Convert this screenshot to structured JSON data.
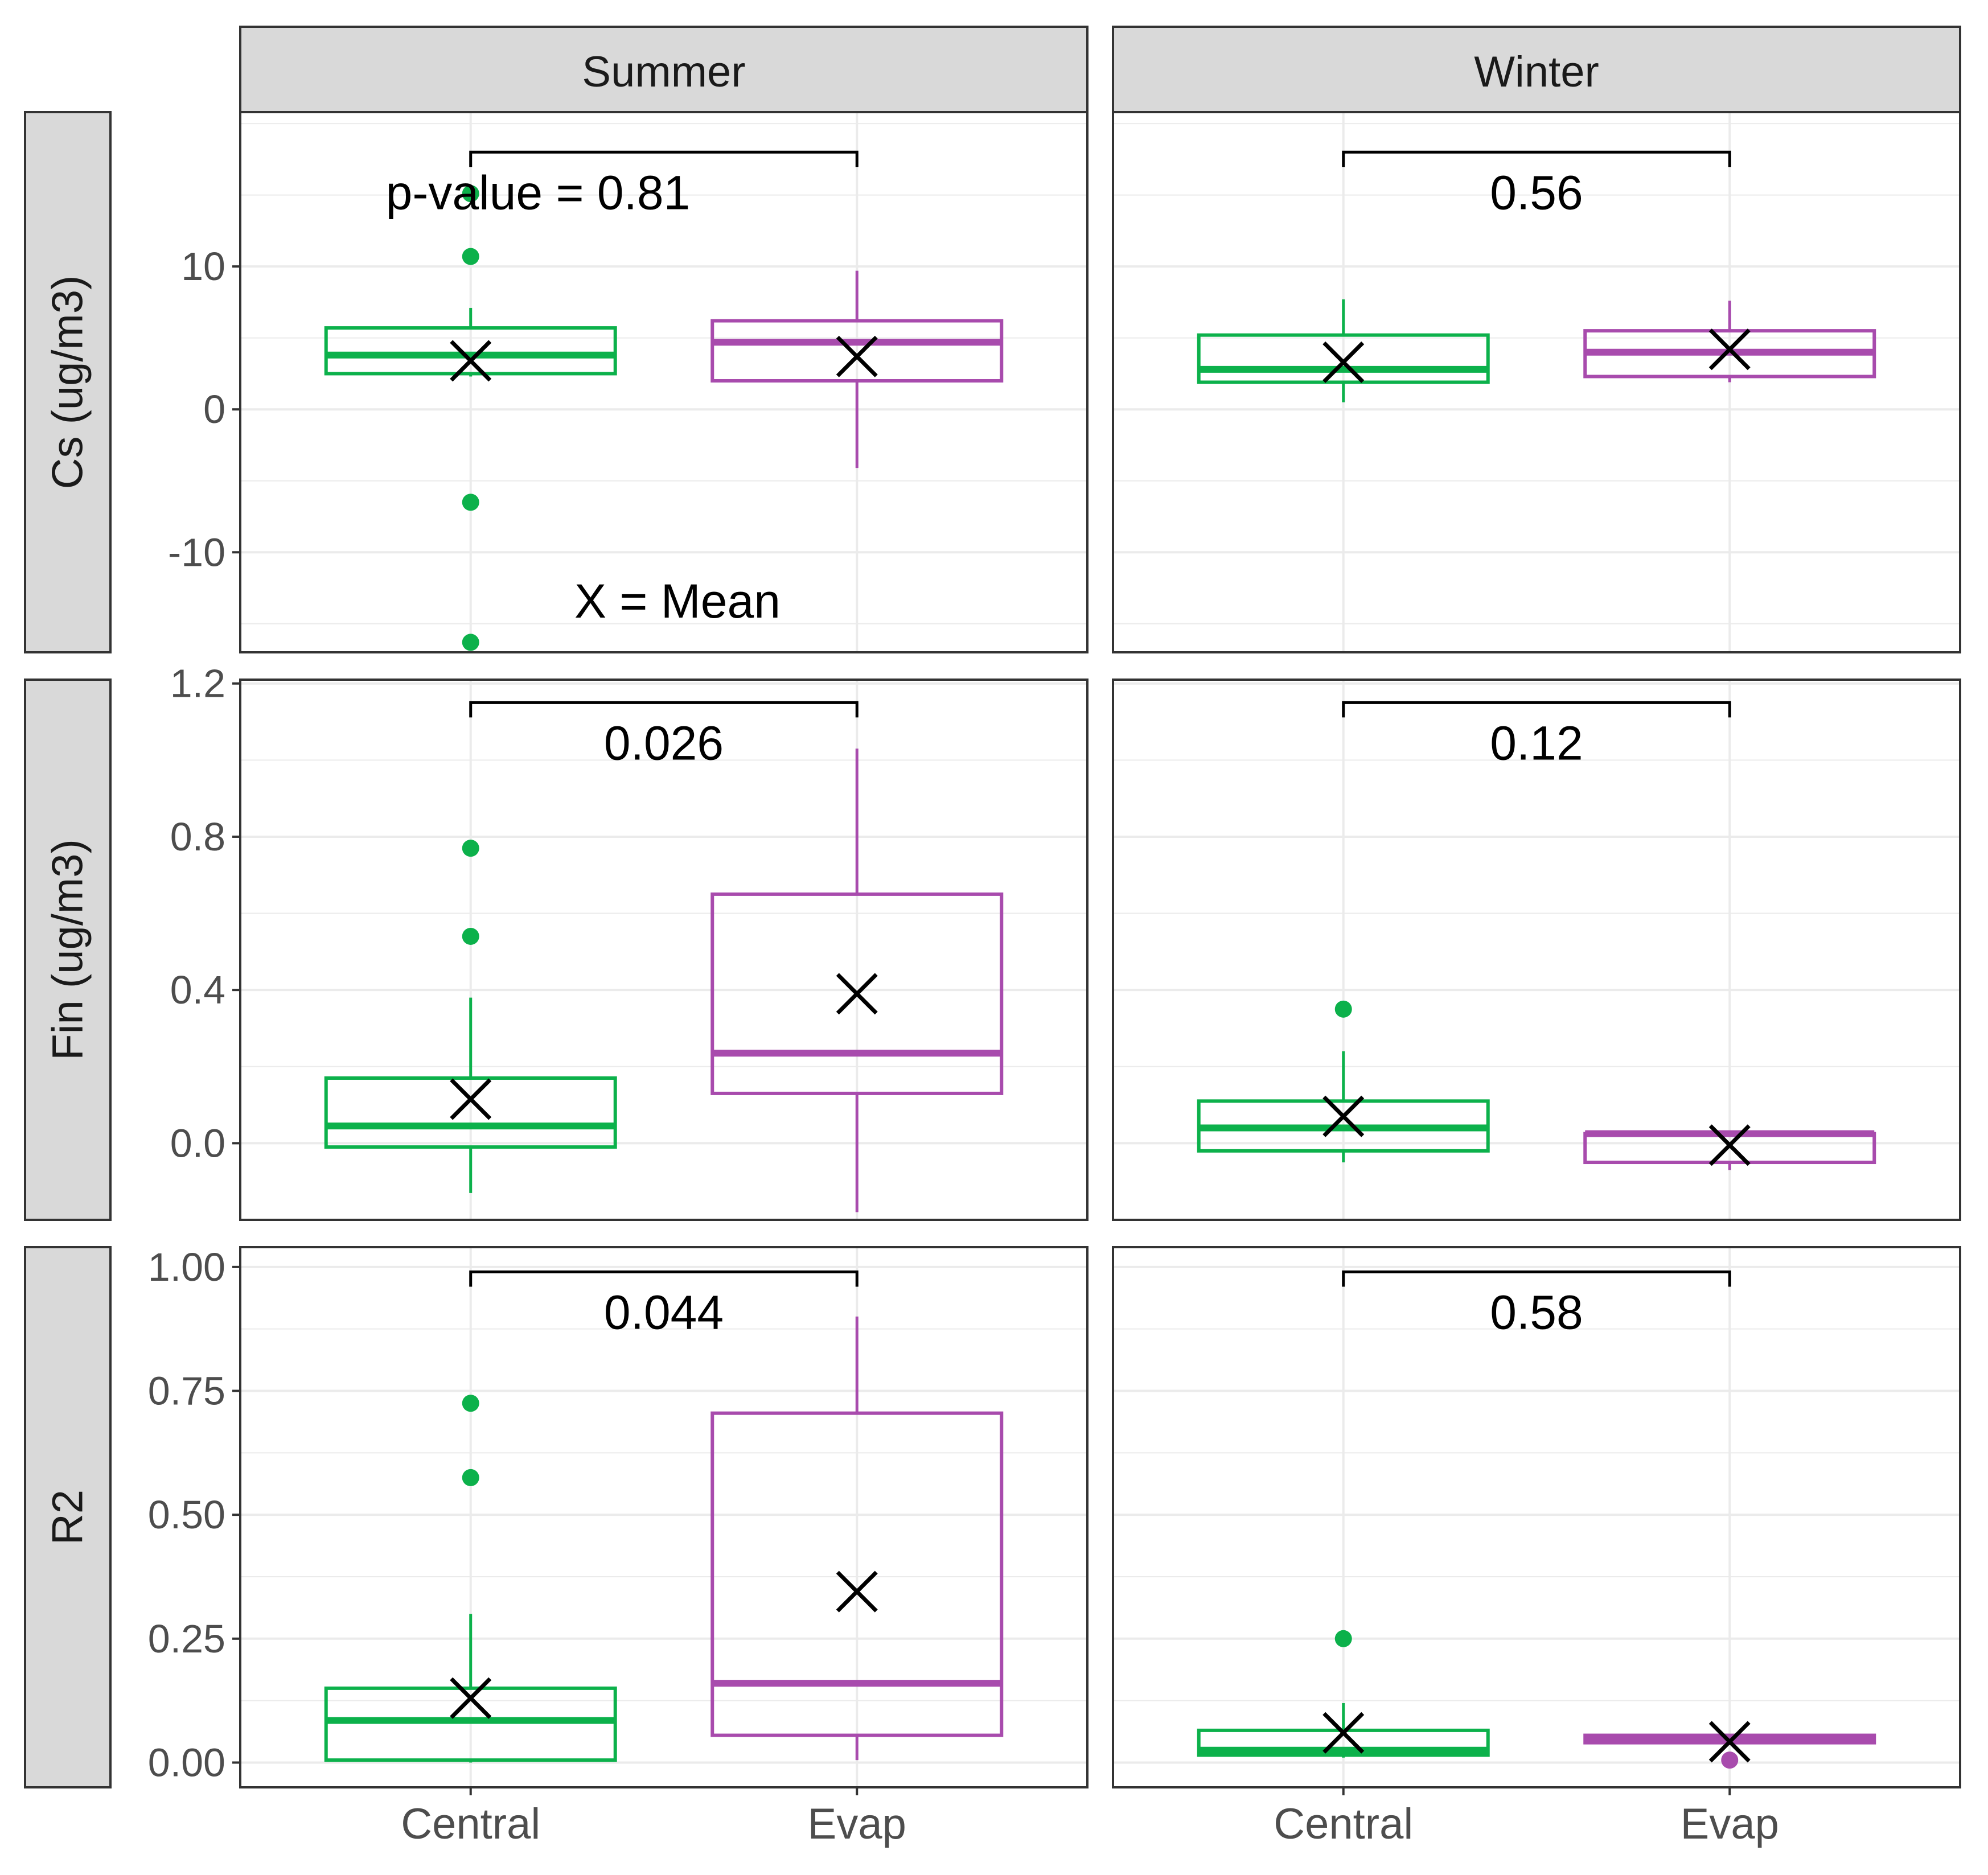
{
  "chart_data": {
    "type": "boxplot",
    "layout": "facet_grid",
    "columns": [
      "Summer",
      "Winter"
    ],
    "x_categories": [
      "Central",
      "Evap"
    ],
    "colors": {
      "Central": "#0CB14B",
      "Evap": "#A84BAD",
      "strip": "#D9D9D9",
      "grid": "#EBEBEB",
      "tick": "#4D4D4D"
    },
    "mean_legend": "X = Mean",
    "p_prefix": "p-value = ",
    "rows": [
      {
        "label": "Cs (ug/m3)",
        "ylim": [
          -17,
          20.8
        ],
        "yticks": [
          -10,
          0,
          10
        ],
        "ytick_labels": [
          "-10",
          "0",
          "10"
        ],
        "panels": [
          {
            "pvalue": "0.81",
            "bracket_y": 18,
            "boxes": [
              {
                "group": "Central",
                "q1": 2.5,
                "median": 3.8,
                "q3": 5.7,
                "wlow": 2.3,
                "whigh": 7.1,
                "mean": 3.4,
                "outliers": [
                  10.7,
                  15.1,
                  -6.5,
                  -16.3
                ]
              },
              {
                "group": "Evap",
                "q1": 2.0,
                "median": 4.7,
                "q3": 6.2,
                "wlow": -4.1,
                "whigh": 9.7,
                "mean": 3.7,
                "outliers": []
              }
            ]
          },
          {
            "pvalue": "0.56",
            "bracket_y": 18,
            "boxes": [
              {
                "group": "Central",
                "q1": 1.9,
                "median": 2.8,
                "q3": 5.2,
                "wlow": 0.5,
                "whigh": 7.7,
                "mean": 3.3,
                "outliers": []
              },
              {
                "group": "Evap",
                "q1": 2.3,
                "median": 4.0,
                "q3": 5.5,
                "wlow": 1.9,
                "whigh": 7.6,
                "mean": 4.2,
                "outliers": []
              }
            ]
          }
        ]
      },
      {
        "label": "Fin (ug/m3)",
        "ylim": [
          -0.2,
          1.21
        ],
        "yticks": [
          0.0,
          0.4,
          0.8,
          1.2
        ],
        "ytick_labels": [
          "0.0",
          "0.4",
          "0.8",
          "1.2"
        ],
        "panels": [
          {
            "pvalue": "0.026",
            "bracket_y": 1.15,
            "boxes": [
              {
                "group": "Central",
                "q1": -0.01,
                "median": 0.045,
                "q3": 0.17,
                "wlow": -0.13,
                "whigh": 0.38,
                "mean": 0.115,
                "outliers": [
                  0.77,
                  0.54
                ]
              },
              {
                "group": "Evap",
                "q1": 0.13,
                "median": 0.235,
                "q3": 0.65,
                "wlow": -0.18,
                "whigh": 1.03,
                "mean": 0.39,
                "outliers": []
              }
            ]
          },
          {
            "pvalue": "0.12",
            "bracket_y": 1.15,
            "boxes": [
              {
                "group": "Central",
                "q1": -0.02,
                "median": 0.04,
                "q3": 0.11,
                "wlow": -0.05,
                "whigh": 0.24,
                "mean": 0.07,
                "outliers": [
                  0.35
                ]
              },
              {
                "group": "Evap",
                "q1": -0.05,
                "median": 0.025,
                "q3": 0.025,
                "wlow": -0.07,
                "whigh": 0.03,
                "mean": -0.005,
                "outliers": []
              }
            ]
          }
        ]
      },
      {
        "label": "R2",
        "ylim": [
          -0.05,
          1.04
        ],
        "yticks": [
          0.0,
          0.25,
          0.5,
          0.75,
          1.0
        ],
        "ytick_labels": [
          "0.00",
          "0.25",
          "0.50",
          "0.75",
          "1.00"
        ],
        "panels": [
          {
            "pvalue": "0.044",
            "bracket_y": 0.99,
            "boxes": [
              {
                "group": "Central",
                "q1": 0.005,
                "median": 0.085,
                "q3": 0.15,
                "wlow": 0.0,
                "whigh": 0.3,
                "mean": 0.13,
                "outliers": [
                  0.725,
                  0.575
                ]
              },
              {
                "group": "Evap",
                "q1": 0.055,
                "median": 0.16,
                "q3": 0.705,
                "wlow": 0.005,
                "whigh": 0.9,
                "mean": 0.345,
                "outliers": []
              }
            ]
          },
          {
            "pvalue": "0.58",
            "bracket_y": 0.99,
            "boxes": [
              {
                "group": "Central",
                "q1": 0.015,
                "median": 0.025,
                "q3": 0.065,
                "wlow": 0.01,
                "whigh": 0.12,
                "mean": 0.06,
                "outliers": [
                  0.25
                ]
              },
              {
                "group": "Evap",
                "q1": 0.04,
                "median": 0.048,
                "q3": 0.055,
                "wlow": 0.035,
                "whigh": 0.055,
                "mean": 0.042,
                "outliers": [
                  0.005
                ]
              }
            ]
          }
        ]
      }
    ]
  }
}
